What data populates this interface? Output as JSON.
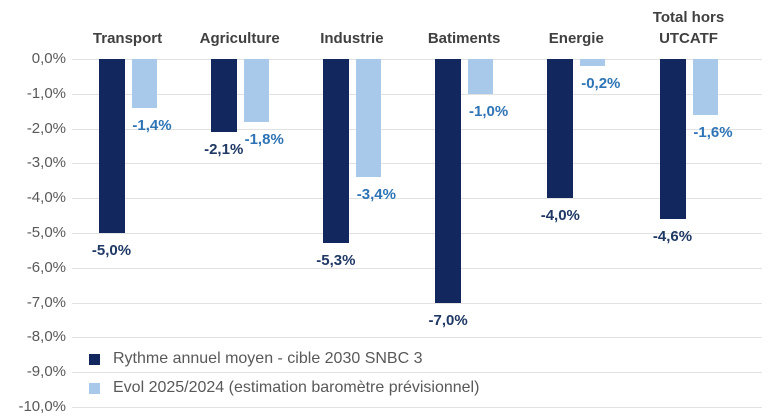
{
  "chart_data": {
    "type": "bar",
    "title": "",
    "categories": [
      "Transport",
      "Agriculture",
      "Industrie",
      "Batiments",
      "Energie",
      "Total hors UTCATF"
    ],
    "series": [
      {
        "name": "Rythme annuel moyen - cible 2030 SNBC 3",
        "color": "#12275d",
        "label_color": "#1f3864",
        "values": [
          -5.0,
          -2.1,
          -5.3,
          -7.0,
          -4.0,
          -4.6
        ],
        "labels": [
          "-5,0%",
          "-2,1%",
          "-5,3%",
          "-7,0%",
          "-4,0%",
          "-4,6%"
        ]
      },
      {
        "name": "Evol 2025/2024 (estimation baromètre prévisionnel)",
        "color": "#a9c9eb",
        "label_color": "#2e74b5",
        "values": [
          -1.4,
          -1.8,
          -3.4,
          -1.0,
          -0.2,
          -1.6
        ],
        "labels": [
          "-1,4%",
          "-1,8%",
          "-3,4%",
          "-1,0%",
          "-0,2%",
          "-1,6%"
        ]
      }
    ],
    "y_ticks": [
      "0,0%",
      "-1,0%",
      "-2,0%",
      "-3,0%",
      "-4,0%",
      "-5,0%",
      "-6,0%",
      "-7,0%",
      "-8,0%",
      "-9,0%",
      "-10,0%"
    ],
    "ylim": [
      0,
      -10
    ],
    "grid": true,
    "legend_position": "bottom-left",
    "gridline_color": "#e2e2e2",
    "axis_text_color": "#595959",
    "category_text_color": "#404040"
  }
}
